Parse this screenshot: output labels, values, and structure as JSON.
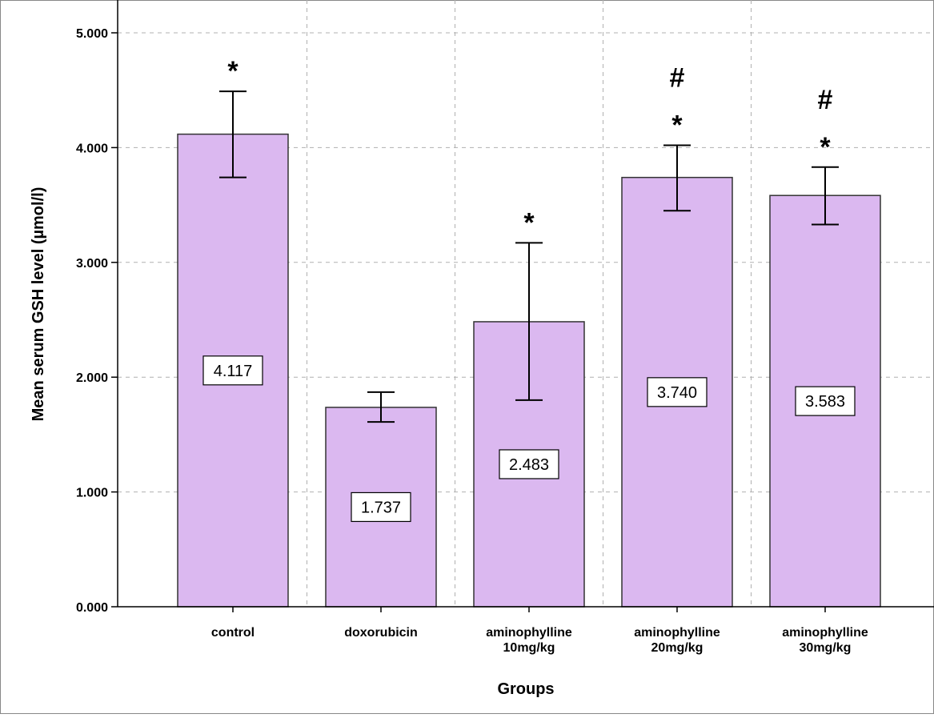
{
  "chart_data": {
    "type": "bar",
    "categories": [
      [
        "control"
      ],
      [
        "doxorubicin"
      ],
      [
        "aminophylline",
        "10mg/kg"
      ],
      [
        "aminophylline",
        "20mg/kg"
      ],
      [
        "aminophylline",
        "30mg/kg"
      ]
    ],
    "values": [
      4.117,
      1.737,
      2.483,
      3.74,
      3.583
    ],
    "value_labels": [
      "4.117",
      "1.737",
      "2.483",
      "3.740",
      "3.583"
    ],
    "error_low": [
      3.74,
      1.61,
      1.8,
      3.45,
      3.33
    ],
    "error_high": [
      4.49,
      1.87,
      3.17,
      4.02,
      3.83
    ],
    "significance_marks": [
      [
        "*"
      ],
      [],
      [
        "*"
      ],
      [
        "#",
        "*"
      ],
      [
        "#",
        "*"
      ]
    ],
    "xlabel": "Groups",
    "ylabel": "Mean serum GSH level (µmol/l)",
    "ylim": [
      0,
      5
    ],
    "yticks": [
      0,
      1,
      2,
      3,
      4,
      5
    ],
    "ytick_labels": [
      "0.000",
      "1.000",
      "2.000",
      "3.000",
      "4.000",
      "5.000"
    ],
    "grid": true,
    "bar_color": "#dbb8f0",
    "bar_edge_color": "#333333"
  }
}
